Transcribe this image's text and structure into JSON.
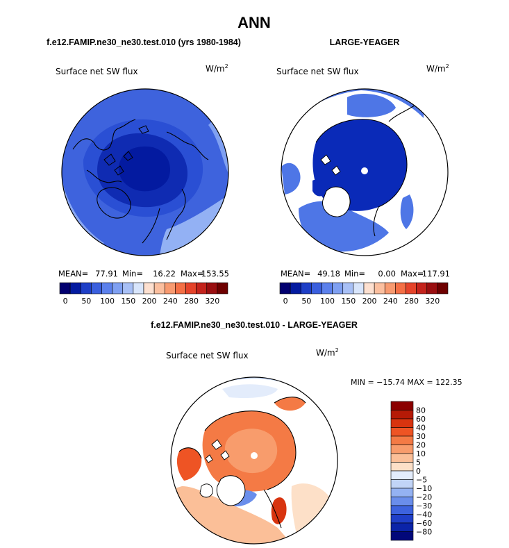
{
  "figure": {
    "title": "ANN",
    "field_label": "Surface net SW flux",
    "units": "W/m",
    "units_exp": "2"
  },
  "colors": {
    "sea_ice": "#0a2ab8",
    "open_ocean": "#6a92ee",
    "land_boundary": "#000000",
    "pole_marker": "#ffffff"
  },
  "chart_data": [
    {
      "type": "heatmap",
      "subtitle": "f.e12.FAMIP.ne30_ne30.test.010 (yrs 1980-1984)",
      "projection": "polar-stereographic-north",
      "stats": {
        "mean_label": "MEAN=",
        "mean": "77.91",
        "min_label": "Min=",
        "min": "16.22",
        "max_label": "Max=",
        "max": "153.55"
      },
      "levels": [
        0,
        25,
        50,
        75,
        100,
        125,
        150,
        175,
        200,
        220,
        240,
        260,
        280,
        300,
        320
      ],
      "tick_labels": [
        "0",
        "50",
        "100",
        "150",
        "200",
        "240",
        "280",
        "320"
      ],
      "colorbar_colors": [
        "#020070",
        "#031aa0",
        "#1e3fc7",
        "#3a5fde",
        "#5b80ec",
        "#7fa0f2",
        "#a8c0f6",
        "#d8e5fb",
        "#fde0d0",
        "#fbbf9f",
        "#f89a70",
        "#f46f45",
        "#e5432a",
        "#c4231c",
        "#9a0e10",
        "#6e0000"
      ]
    },
    {
      "type": "heatmap",
      "subtitle": "LARGE-YEAGER",
      "projection": "polar-stereographic-north",
      "stats": {
        "mean_label": "MEAN=",
        "mean": "49.18",
        "min_label": "Min=",
        "min": "0.00",
        "max_label": "Max=",
        "max": "117.91"
      },
      "levels": [
        0,
        25,
        50,
        75,
        100,
        125,
        150,
        175,
        200,
        220,
        240,
        260,
        280,
        300,
        320
      ],
      "tick_labels": [
        "0",
        "50",
        "100",
        "150",
        "200",
        "240",
        "280",
        "320"
      ],
      "colorbar_colors": [
        "#020070",
        "#031aa0",
        "#1e3fc7",
        "#3a5fde",
        "#5b80ec",
        "#7fa0f2",
        "#a8c0f6",
        "#d8e5fb",
        "#fde0d0",
        "#fbbf9f",
        "#f89a70",
        "#f46f45",
        "#e5432a",
        "#c4231c",
        "#9a0e10",
        "#6e0000"
      ]
    },
    {
      "type": "heatmap",
      "subtitle": "f.e12.FAMIP.ne30_ne30.test.010 - LARGE-YEAGER",
      "projection": "polar-stereographic-north",
      "stats_text": "MIN = −15.74 MAX = 122.35",
      "levels": [
        -80,
        -60,
        -40,
        -30,
        -20,
        -10,
        -5,
        0,
        5,
        10,
        20,
        30,
        40,
        60,
        80
      ],
      "tick_labels": [
        "80",
        "60",
        "40",
        "30",
        "20",
        "10",
        "5",
        "0",
        "−5",
        "−10",
        "−20",
        "−30",
        "−40",
        "−60",
        "−80"
      ],
      "colorbar_colors": [
        "#8b0000",
        "#b51a06",
        "#d8340f",
        "#ee5424",
        "#f47a45",
        "#f89c6c",
        "#fbbf98",
        "#fde0c8",
        "#e3ecfb",
        "#c1d4f7",
        "#94b2f2",
        "#6a8eeb",
        "#3d63de",
        "#1f3fc8",
        "#0b24a8",
        "#02087a"
      ]
    }
  ]
}
